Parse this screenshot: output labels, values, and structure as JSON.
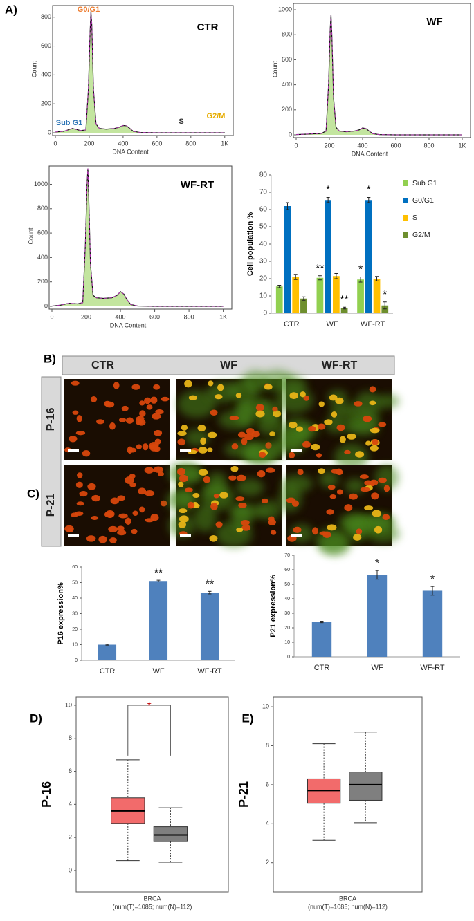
{
  "chart_data": [
    {
      "type": "line",
      "panel": "A)",
      "title": "CTR",
      "xlabel": "DNA Content",
      "ylabel": "Count",
      "color": "#92d050",
      "x": [
        0,
        50,
        100,
        150,
        180,
        195,
        205,
        210,
        215,
        225,
        240,
        260,
        300,
        350,
        380,
        400,
        420,
        440,
        460,
        500,
        600,
        800,
        1000
      ],
      "values": [
        5,
        10,
        30,
        15,
        20,
        300,
        700,
        840,
        750,
        300,
        60,
        30,
        25,
        30,
        40,
        50,
        48,
        30,
        10,
        2,
        0,
        0,
        0
      ],
      "xlim": [
        0,
        1050
      ],
      "xticks": [
        0,
        200,
        400,
        600,
        800,
        {
          "value": 1000,
          "label": "1K"
        }
      ],
      "ylim": [
        0,
        880
      ],
      "yticks": [
        0,
        200,
        400,
        600,
        800
      ],
      "annotations": [
        {
          "text": "G0/G1",
          "color": "#ed7d31"
        },
        {
          "text": "S",
          "color": "#333333"
        },
        {
          "text": "G2/M",
          "color": "#e6ac00"
        },
        {
          "text": "Sub G1",
          "color": "#2e75b6"
        }
      ]
    },
    {
      "type": "line",
      "title": "WF",
      "xlabel": "DNA Content",
      "ylabel": "Count",
      "color": "#92d050",
      "x": [
        0,
        50,
        100,
        150,
        180,
        195,
        205,
        210,
        215,
        225,
        240,
        260,
        300,
        350,
        380,
        400,
        420,
        440,
        460,
        500,
        600,
        800,
        1000
      ],
      "values": [
        2,
        5,
        8,
        10,
        30,
        400,
        850,
        960,
        800,
        300,
        60,
        30,
        25,
        30,
        40,
        55,
        50,
        30,
        10,
        2,
        0,
        0,
        0
      ],
      "xlim": [
        0,
        1050
      ],
      "xticks": [
        0,
        200,
        400,
        600,
        800,
        {
          "value": 1000,
          "label": "1K"
        }
      ],
      "ylim": [
        0,
        1050
      ],
      "yticks": [
        0,
        200,
        400,
        600,
        800,
        1000
      ]
    },
    {
      "type": "line",
      "title": "WF-RT",
      "xlabel": "DNA Content",
      "ylabel": "Count",
      "color": "#92d050",
      "x": [
        0,
        50,
        100,
        150,
        180,
        195,
        205,
        210,
        215,
        225,
        240,
        260,
        300,
        350,
        380,
        400,
        420,
        440,
        460,
        500,
        600,
        800,
        1000
      ],
      "values": [
        2,
        10,
        25,
        20,
        30,
        500,
        1000,
        1130,
        900,
        350,
        90,
        70,
        65,
        70,
        90,
        120,
        100,
        50,
        15,
        3,
        0,
        0,
        0
      ],
      "xlim": [
        0,
        1050
      ],
      "xticks": [
        0,
        200,
        400,
        600,
        800,
        {
          "value": 1000,
          "label": "1K"
        }
      ],
      "ylim": [
        0,
        1150
      ],
      "yticks": [
        0,
        200,
        400,
        600,
        800,
        1000
      ]
    },
    {
      "type": "bar",
      "ylabel": "Cell population %",
      "categories": [
        "CTR",
        "WF",
        "WF-RT"
      ],
      "series": [
        {
          "name": "Sub G1",
          "color": "#92d050",
          "values": [
            15.5,
            20.5,
            19.5
          ],
          "errors": [
            0.7,
            1.2,
            1.5
          ],
          "significance": [
            null,
            "**",
            "*"
          ]
        },
        {
          "name": "G0/G1",
          "color": "#0070c0",
          "values": [
            62,
            65.5,
            65.5
          ],
          "errors": [
            2,
            1.5,
            1.5
          ],
          "significance": [
            null,
            "*",
            "*"
          ]
        },
        {
          "name": "S",
          "color": "#ffc000",
          "values": [
            21,
            21.5,
            20
          ],
          "errors": [
            1.5,
            1.5,
            1.3
          ],
          "significance": [
            null,
            null,
            null
          ]
        },
        {
          "name": "G2/M",
          "color": "#6e8f2e",
          "values": [
            8.5,
            3,
            4.5
          ],
          "errors": [
            1,
            0.5,
            2
          ],
          "significance": [
            null,
            "**",
            "*"
          ]
        }
      ],
      "ylim": [
        0,
        80
      ],
      "yticks": [
        0,
        10,
        20,
        30,
        40,
        50,
        60,
        70,
        80
      ]
    },
    {
      "type": "bar",
      "panel": "C)",
      "ylabel": "P16 expression%",
      "categories": [
        "CTR",
        "WF",
        "WF-RT"
      ],
      "color": "#4f81bd",
      "values": [
        10,
        51,
        43.5
      ],
      "errors": [
        0.3,
        0.5,
        0.8
      ],
      "significance": [
        null,
        "**",
        "**"
      ],
      "ylim": [
        0,
        60
      ],
      "yticks": [
        0,
        10,
        20,
        30,
        40,
        50,
        60
      ]
    },
    {
      "type": "bar",
      "ylabel": "P21 expression%",
      "categories": [
        "CTR",
        "WF",
        "WF-RT"
      ],
      "color": "#4f81bd",
      "values": [
        24,
        56.5,
        45.5
      ],
      "errors": [
        0.5,
        3,
        3
      ],
      "significance": [
        null,
        "*",
        "*"
      ],
      "ylim": [
        0,
        70
      ],
      "yticks": [
        0,
        10,
        20,
        30,
        40,
        50,
        60,
        70
      ]
    },
    {
      "type": "box",
      "panel": "D)",
      "ylabel": "P-16",
      "xlabel": "BRCA",
      "subtitle": "(num(T)=1085; num(N)=112)",
      "significance": "*",
      "significance_color": "#c00000",
      "boxes": [
        {
          "color": "#f26b6b",
          "min": 0.6,
          "q1": 2.85,
          "median": 3.6,
          "q3": 4.4,
          "max": 6.7
        },
        {
          "color": "#7f7f7f",
          "min": 0.5,
          "q1": 1.75,
          "median": 2.15,
          "q3": 2.65,
          "max": 3.8
        }
      ],
      "ylim": [
        -1.3,
        10.5
      ],
      "yticks": [
        0,
        2,
        4,
        6,
        8,
        10
      ]
    },
    {
      "type": "box",
      "panel": "E)",
      "ylabel": "P-21",
      "xlabel": "BRCA",
      "subtitle": "(num(T)=1085; num(N)=112)",
      "boxes": [
        {
          "color": "#f26b6b",
          "min": 3.15,
          "q1": 5.05,
          "median": 5.7,
          "q3": 6.3,
          "max": 8.1
        },
        {
          "color": "#7f7f7f",
          "min": 4.05,
          "q1": 5.2,
          "median": 6.0,
          "q3": 6.65,
          "max": 8.7
        }
      ],
      "ylim": [
        0.5,
        10.5
      ],
      "yticks": [
        2,
        4,
        6,
        8,
        10
      ]
    }
  ],
  "image_panel": {
    "label": "B)",
    "columns": [
      "CTR",
      "WF",
      "WF-RT"
    ],
    "rows": [
      "P-16",
      "P-21"
    ]
  }
}
